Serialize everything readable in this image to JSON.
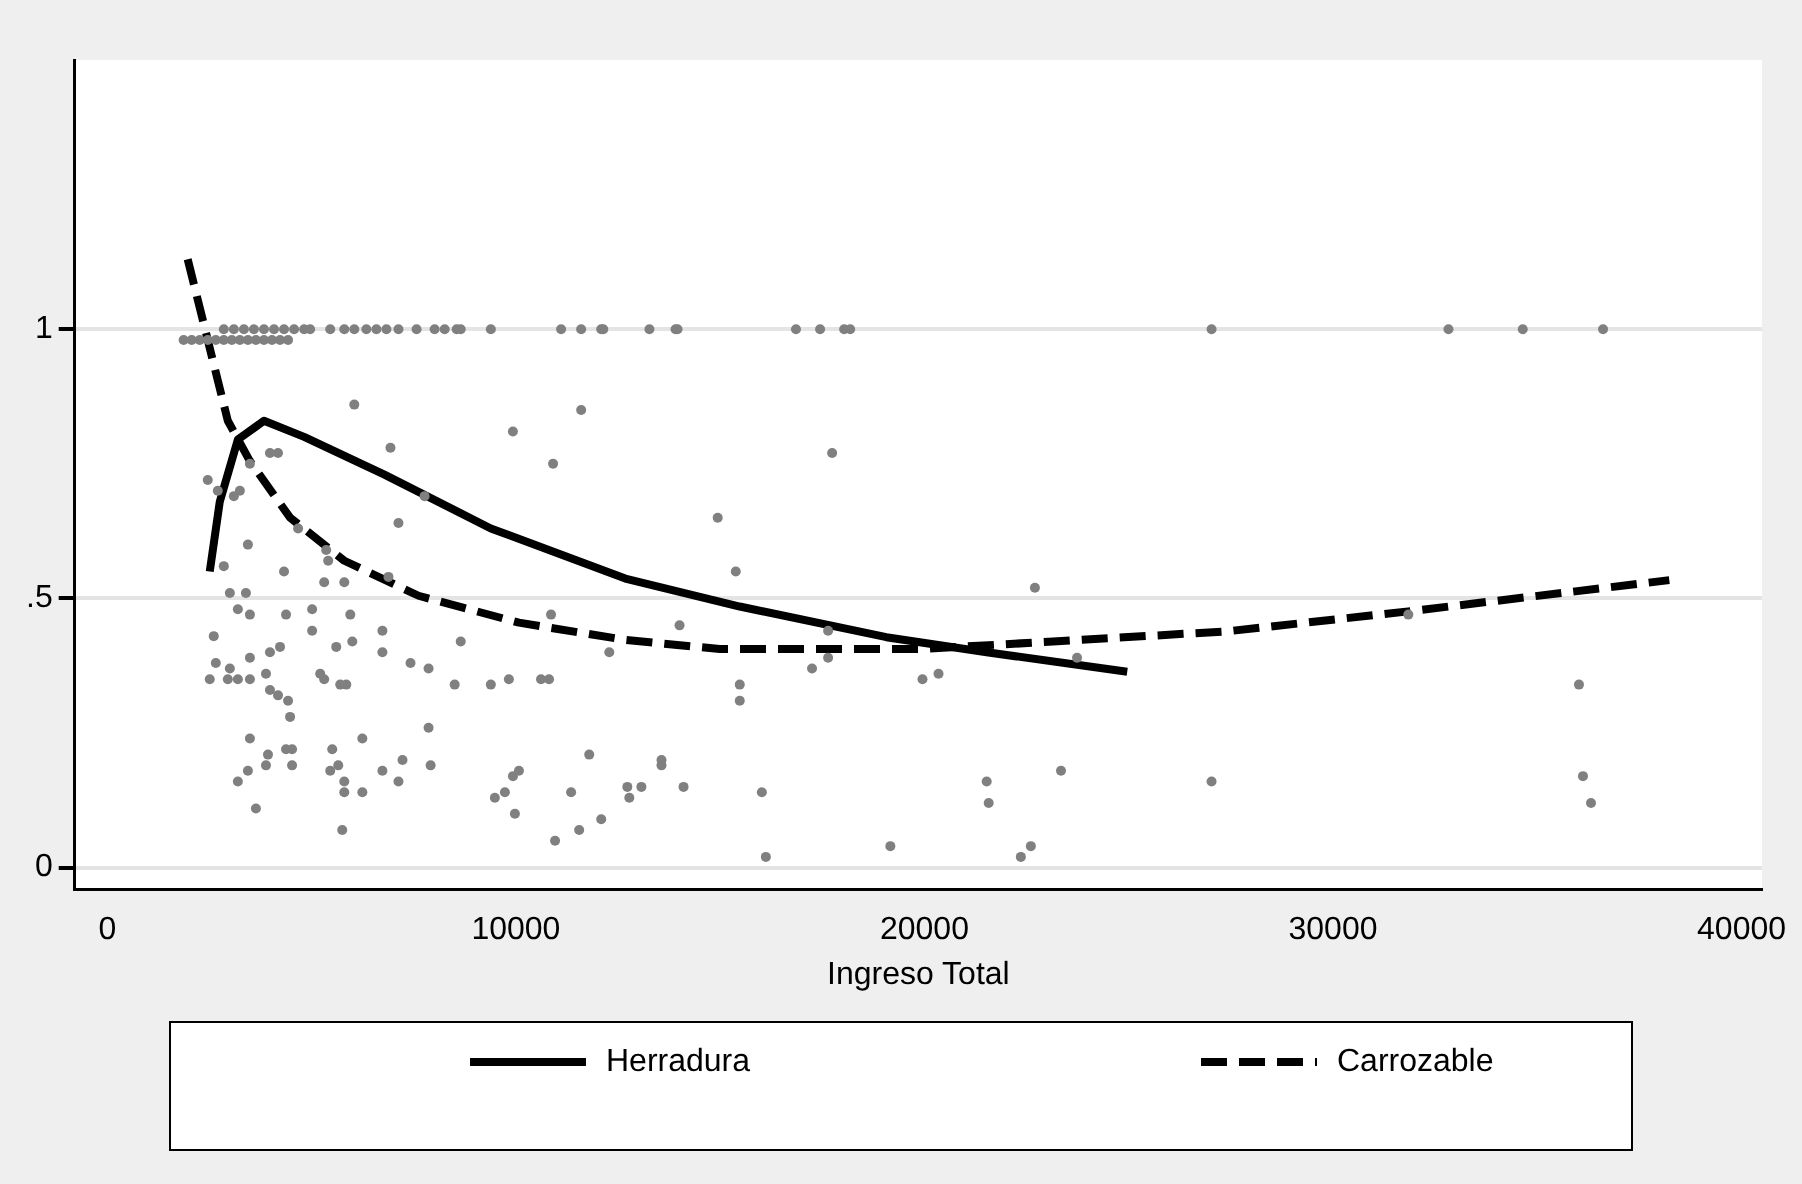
{
  "chart_data": {
    "type": "scatter",
    "xlabel": "Ingreso Total",
    "xlim": [
      -800,
      40500
    ],
    "ylim": [
      -0.04,
      1.5
    ],
    "xticks": [
      0,
      10000,
      20000,
      30000,
      40000
    ],
    "yticks": [
      0,
      {
        "value": 0.5,
        "label": ".5"
      },
      1
    ],
    "grid": "y",
    "legend": "bottom",
    "series": [
      {
        "type": "scatter",
        "color": "#808080",
        "marker": "circle",
        "x": [
          2850,
          3096,
          3342,
          3587,
          3833,
          4079,
          4324,
          4570,
          4816,
          4963,
          5455,
          5799,
          6044,
          6339,
          6585,
          6830,
          7125,
          7568,
          8010,
          8256,
          8550,
          8649,
          9386,
          11106,
          11597,
          12088,
          12138,
          13268,
          13907,
          13956,
          16855,
          17445,
          18034,
          18182,
          27027,
          32826,
          34644,
          36609,
          1867,
          2064,
          2260,
          2457,
          2654,
          2850,
          3047,
          3243,
          3440,
          3636,
          3833,
          4030,
          4226,
          4423,
          6044,
          11597,
          9926,
          6929,
          10909,
          4177,
          3980,
          3489,
          2457,
          2703,
          3096,
          3243,
          7764,
          7125,
          4668,
          5356,
          3440,
          5405,
          2850,
          6880,
          4324,
          5799,
          5307,
          2998,
          3391,
          3194,
          3489,
          4373,
          5012,
          5946,
          10860,
          2604,
          5012,
          6732,
          4226,
          5602,
          5995,
          6732,
          3980,
          8649,
          2654,
          3489,
          2998,
          7420,
          7862,
          2506,
          2948,
          3194,
          3489,
          3882,
          5209,
          5307,
          5700,
          5848,
          8501,
          9386,
          9828,
          10614,
          10811,
          12285,
          3980,
          4177,
          4423,
          4472,
          7862,
          3489,
          6241,
          3931,
          4373,
          4521,
          5504,
          7224,
          7912,
          11794,
          4521,
          3440,
          3882,
          5455,
          5651,
          6732,
          9928,
          10074,
          3194,
          5799,
          7125,
          5799,
          6241,
          11351,
          9730,
          9484,
          3636,
          9975,
          12088,
          5749,
          11548,
          10958,
          14939,
          17740,
          15381,
          14005,
          22703,
          17641,
          17641,
          17248,
          15479,
          15479,
          19951,
          20344,
          23735,
          13563,
          13563,
          14103,
          12727,
          13071,
          12776,
          16020,
          21523,
          21572,
          23342,
          27027,
          19165,
          16118,
          22604,
          22359,
          31843,
          36020,
          36118,
          36315
        ],
        "values": [
          1,
          1,
          1,
          1,
          1,
          1,
          1,
          1,
          1,
          1,
          1,
          1,
          1,
          1,
          1,
          1,
          1,
          1,
          1,
          1,
          1,
          1,
          1,
          1,
          1,
          1,
          1,
          1,
          1,
          1,
          1,
          1,
          1,
          1,
          1,
          1,
          1,
          1,
          0.98,
          0.98,
          0.98,
          0.98,
          0.98,
          0.98,
          0.98,
          0.98,
          0.98,
          0.98,
          0.98,
          0.98,
          0.98,
          0.98,
          0.86,
          0.85,
          0.81,
          0.78,
          0.75,
          0.77,
          0.77,
          0.75,
          0.72,
          0.7,
          0.69,
          0.7,
          0.69,
          0.64,
          0.63,
          0.59,
          0.6,
          0.57,
          0.56,
          0.54,
          0.55,
          0.53,
          0.53,
          0.51,
          0.51,
          0.48,
          0.47,
          0.47,
          0.48,
          0.47,
          0.47,
          0.43,
          0.44,
          0.44,
          0.41,
          0.41,
          0.42,
          0.4,
          0.4,
          0.42,
          0.38,
          0.39,
          0.37,
          0.38,
          0.37,
          0.35,
          0.35,
          0.35,
          0.35,
          0.36,
          0.36,
          0.35,
          0.34,
          0.34,
          0.34,
          0.34,
          0.35,
          0.35,
          0.35,
          0.4,
          0.33,
          0.32,
          0.31,
          0.28,
          0.26,
          0.24,
          0.24,
          0.21,
          0.22,
          0.22,
          0.22,
          0.2,
          0.19,
          0.21,
          0.19,
          0.18,
          0.19,
          0.18,
          0.19,
          0.18,
          0.17,
          0.18,
          0.16,
          0.16,
          0.16,
          0.14,
          0.14,
          0.14,
          0.14,
          0.13,
          0.11,
          0.1,
          0.09,
          0.07,
          0.07,
          0.05,
          0.65,
          0.77,
          0.55,
          0.45,
          0.52,
          0.44,
          0.39,
          0.37,
          0.34,
          0.31,
          0.35,
          0.36,
          0.39,
          0.2,
          0.19,
          0.15,
          0.15,
          0.15,
          0.13,
          0.14,
          0.16,
          0.12,
          0.18,
          0.16,
          0.04,
          0.02,
          0.04,
          0.02,
          0.47,
          0.34,
          0.17,
          0.12
        ]
      },
      {
        "name": "Herradura",
        "type": "line",
        "color": "#000000",
        "marker": "none",
        "line_style": "solid",
        "x": [
          2506,
          2752,
          3194,
          3833,
          4816,
          6782,
          9386,
          12678,
          15479,
          19067,
          21523,
          24963
        ],
        "values": [
          0.55,
          0.68,
          0.795,
          0.83,
          0.8,
          0.73,
          0.63,
          0.537,
          0.485,
          0.428,
          0.4,
          0.364
        ]
      },
      {
        "name": "Carrozable",
        "type": "line",
        "color": "#000000",
        "marker": "none",
        "line_style": "dashed",
        "x": [
          1966,
          2457,
          2948,
          3489,
          4472,
          5799,
          7617,
          10074,
          12678,
          14988,
          19902,
          23145,
          27420,
          31843,
          38231
        ],
        "values": [
          1.13,
          0.98,
          0.83,
          0.755,
          0.65,
          0.57,
          0.505,
          0.455,
          0.423,
          0.406,
          0.406,
          0.42,
          0.439,
          0.476,
          0.534
        ]
      }
    ]
  }
}
